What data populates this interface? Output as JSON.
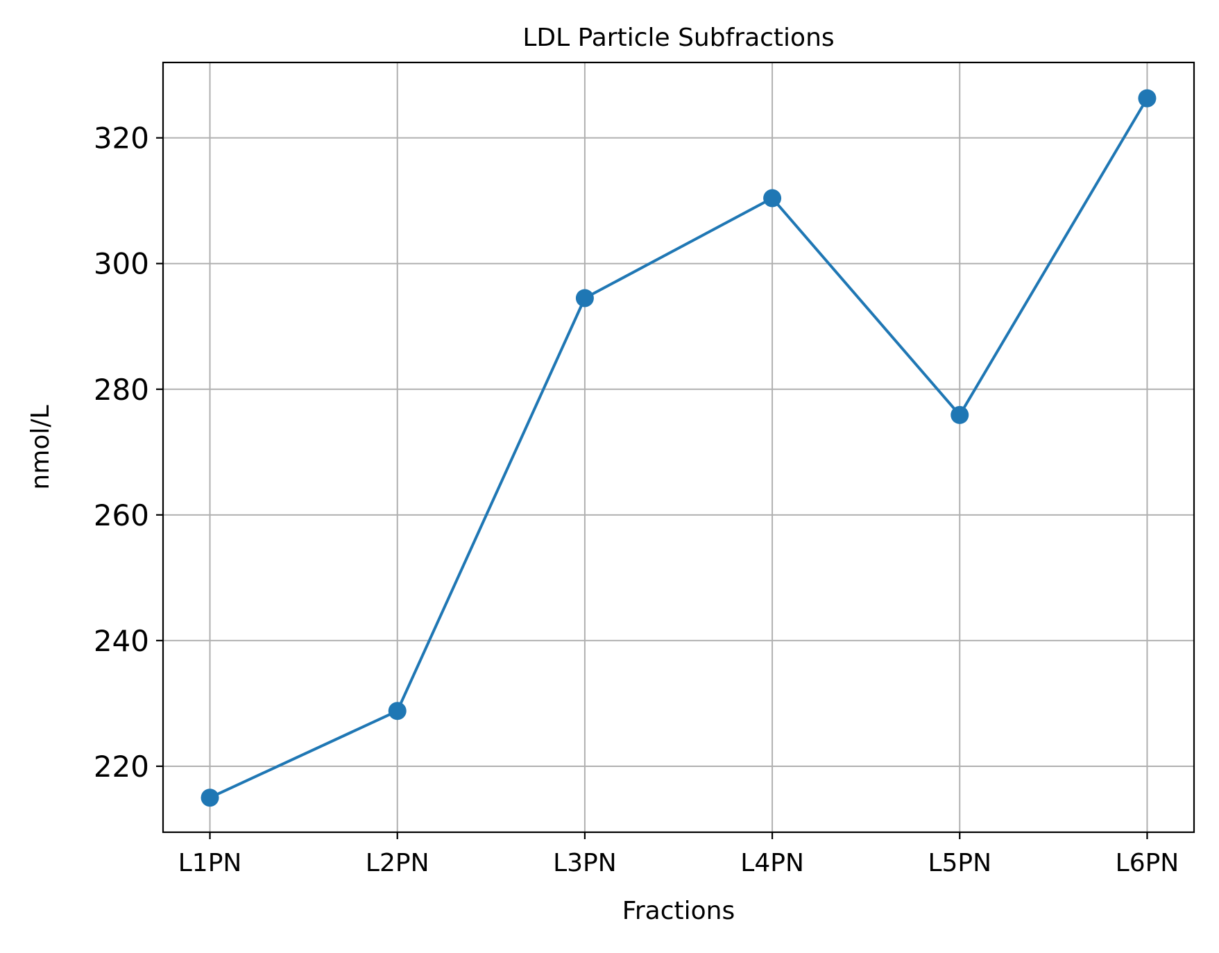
{
  "chart_data": {
    "type": "line",
    "title": "LDL Particle Subfractions",
    "xlabel": "Fractions",
    "ylabel": "nmol/L",
    "categories": [
      "L1PN",
      "L2PN",
      "L3PN",
      "L4PN",
      "L5PN",
      "L6PN"
    ],
    "series": [
      {
        "values": [
          215.0,
          228.8,
          294.5,
          310.4,
          275.9,
          326.3
        ],
        "color": "#1f77b4",
        "marker": "circle"
      }
    ],
    "ylim": [
      209.5,
      332
    ],
    "yticks": [
      220,
      240,
      260,
      280,
      300,
      320
    ],
    "ytick_labels": [
      "220",
      "240",
      "260",
      "280",
      "300",
      "320"
    ],
    "grid": true
  }
}
